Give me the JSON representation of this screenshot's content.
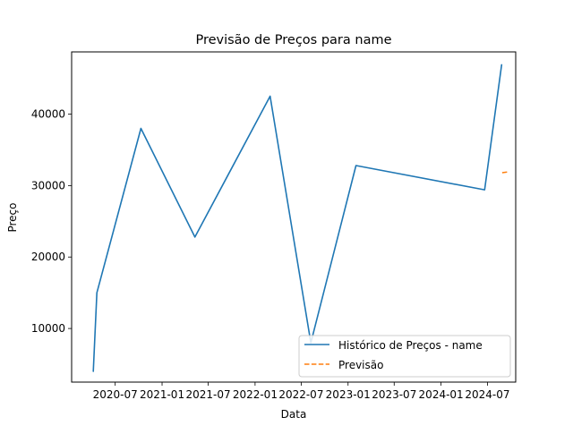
{
  "chart_data": {
    "type": "line",
    "title": "Previsão de Preços para name",
    "xlabel": "Data",
    "ylabel": "Preço",
    "x_type": "date",
    "xlim": [
      "2020-01-12",
      "2024-10-20"
    ],
    "ylim": [
      2500,
      48700
    ],
    "x_ticks": [
      {
        "date": "2020-07-01",
        "label": "2020-07"
      },
      {
        "date": "2021-01-01",
        "label": "2021-01"
      },
      {
        "date": "2021-07-01",
        "label": "2021-07"
      },
      {
        "date": "2022-01-01",
        "label": "2022-01"
      },
      {
        "date": "2022-07-01",
        "label": "2022-07"
      },
      {
        "date": "2023-01-01",
        "label": "2023-01"
      },
      {
        "date": "2023-07-01",
        "label": "2023-07"
      },
      {
        "date": "2024-01-01",
        "label": "2024-01"
      },
      {
        "date": "2024-07-01",
        "label": "2024-07"
      }
    ],
    "y_ticks": [
      10000,
      20000,
      30000,
      40000
    ],
    "grid": false,
    "legend": "lower-right",
    "series": [
      {
        "name": "Histórico de Preços - name",
        "color": "#1f77b4",
        "style": "solid",
        "points": [
          {
            "x": "2020-04-06",
            "y": 4000
          },
          {
            "x": "2020-04-20",
            "y": 15000
          },
          {
            "x": "2020-10-10",
            "y": 38000
          },
          {
            "x": "2021-05-10",
            "y": 22800
          },
          {
            "x": "2022-03-01",
            "y": 42500
          },
          {
            "x": "2022-08-08",
            "y": 8000
          },
          {
            "x": "2023-02-01",
            "y": 32800
          },
          {
            "x": "2024-06-20",
            "y": 29400
          },
          {
            "x": "2024-08-26",
            "y": 46900
          }
        ]
      },
      {
        "name": "Previsão",
        "color": "#ff7f0e",
        "style": "dashed",
        "points": [
          {
            "x": "2024-08-28",
            "y": 31800
          },
          {
            "x": "2024-09-17",
            "y": 31900
          }
        ]
      }
    ]
  }
}
